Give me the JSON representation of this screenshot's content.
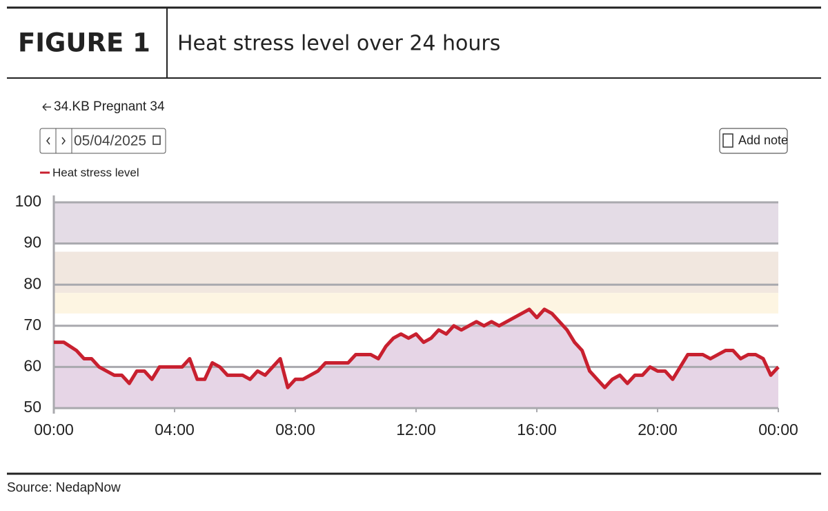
{
  "figure_label": "FIGURE 1",
  "back_label": "34.KB Pregnant 34",
  "date": "05/04/2025",
  "add_note": "Add note",
  "source": "Source: NedapNow",
  "chart_data": {
    "type": "line",
    "title": "Heat stress level over 24 hours",
    "x": [
      0,
      0.33,
      0.75,
      1.0,
      1.25,
      1.5,
      2.0,
      2.25,
      2.5,
      2.75,
      3.0,
      3.25,
      3.5,
      3.75,
      4.25,
      4.5,
      4.75,
      5.0,
      5.25,
      5.5,
      5.75,
      6.25,
      6.5,
      6.75,
      7.0,
      7.5,
      7.75,
      8.0,
      8.25,
      8.75,
      9.0,
      9.75,
      10.0,
      10.5,
      10.75,
      11.0,
      11.25,
      11.5,
      11.75,
      12.0,
      12.25,
      12.5,
      12.75,
      13.0,
      13.25,
      13.5,
      14.0,
      14.25,
      14.5,
      14.75,
      15.75,
      16.0,
      16.25,
      16.5,
      17.0,
      17.25,
      17.5,
      17.75,
      18.0,
      18.25,
      18.5,
      18.75,
      19.0,
      19.25,
      19.5,
      19.75,
      20.0,
      20.25,
      20.5,
      21.0,
      21.5,
      21.75,
      22.25,
      22.5,
      22.75,
      23.0,
      23.25,
      23.5,
      23.75,
      24.0
    ],
    "series": [
      {
        "name": "Heat stress level",
        "color": "#c8202f",
        "fill": "#e6d5e6",
        "values": [
          66,
          66,
          64,
          62,
          62,
          60,
          58,
          58,
          56,
          59,
          59,
          57,
          60,
          60,
          60,
          62,
          57,
          57,
          61,
          60,
          58,
          58,
          57,
          59,
          58,
          62,
          55,
          57,
          57,
          59,
          61,
          61,
          63,
          63,
          62,
          65,
          67,
          68,
          67,
          68,
          66,
          67,
          69,
          68,
          70,
          69,
          71,
          70,
          71,
          70,
          74,
          72,
          74,
          73,
          69,
          66,
          64,
          59,
          57,
          55,
          57,
          58,
          56,
          58,
          58,
          60,
          59,
          59,
          57,
          63,
          63,
          62,
          64,
          64,
          62,
          63,
          63,
          62,
          58,
          60
        ]
      }
    ],
    "xlim": [
      0,
      24
    ],
    "xticks": [
      {
        "value": 0,
        "label": "00:00"
      },
      {
        "value": 4,
        "label": "04:00"
      },
      {
        "value": 8,
        "label": "08:00"
      },
      {
        "value": 12,
        "label": "12:00"
      },
      {
        "value": 16,
        "label": "16:00"
      },
      {
        "value": 20,
        "label": "20:00"
      },
      {
        "value": 24,
        "label": "00:00"
      }
    ],
    "ylim": [
      50,
      100
    ],
    "yticks": [
      50,
      60,
      70,
      80,
      90,
      100
    ],
    "grid": true,
    "bands": [
      {
        "from": 90,
        "to": 100,
        "color": "#e4dce6"
      },
      {
        "from": 78,
        "to": 88,
        "color": "#f1e7df"
      },
      {
        "from": 73,
        "to": 78,
        "color": "#fdf5e2"
      }
    ]
  }
}
